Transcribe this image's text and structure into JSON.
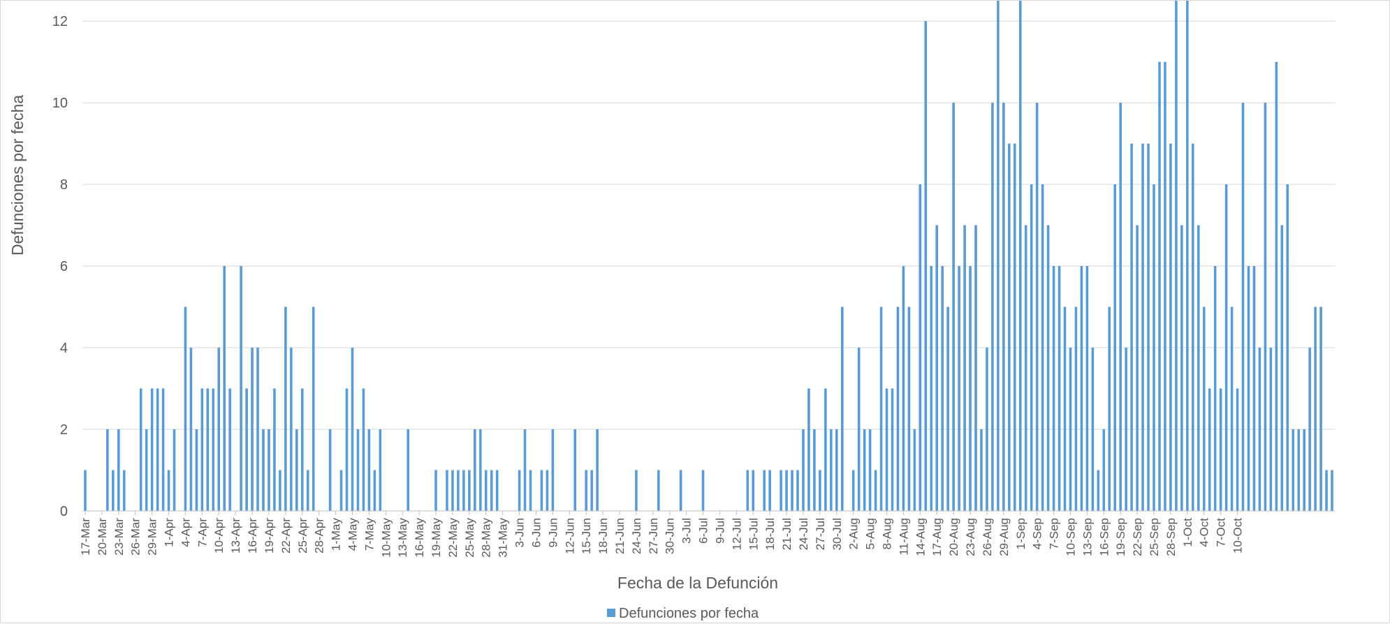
{
  "chart_data": {
    "type": "bar",
    "xlabel": "Fecha de la Defunción",
    "ylabel": "Defunciones por fecha",
    "ylim": [
      0,
      12.5
    ],
    "y_ticks": [
      0,
      2,
      4,
      6,
      8,
      10,
      12
    ],
    "grid": true,
    "legend_position": "bottom",
    "bar_color": "#5b9bd5",
    "grid_color": "#d9d9d9",
    "x_tick_labels": [
      "17-Mar",
      "20-Mar",
      "23-Mar",
      "26-Mar",
      "29-Mar",
      "1-Apr",
      "4-Apr",
      "7-Apr",
      "10-Apr",
      "13-Apr",
      "16-Apr",
      "19-Apr",
      "22-Apr",
      "25-Apr",
      "28-Apr",
      "1-May",
      "4-May",
      "7-May",
      "10-May",
      "13-May",
      "16-May",
      "19-May",
      "22-May",
      "25-May",
      "28-May",
      "31-May",
      "3-Jun",
      "6-Jun",
      "9-Jun",
      "12-Jun",
      "15-Jun",
      "18-Jun",
      "21-Jun",
      "24-Jun",
      "27-Jun",
      "30-Jun",
      "3-Jul",
      "6-Jul",
      "9-Jul",
      "12-Jul",
      "15-Jul",
      "18-Jul",
      "21-Jul",
      "24-Jul",
      "27-Jul",
      "30-Jul",
      "2-Aug",
      "5-Aug",
      "8-Aug",
      "11-Aug",
      "14-Aug",
      "17-Aug",
      "20-Aug",
      "23-Aug",
      "26-Aug",
      "29-Aug",
      "1-Sep",
      "4-Sep",
      "7-Sep",
      "10-Sep",
      "13-Sep",
      "16-Sep",
      "19-Sep",
      "22-Sep",
      "25-Sep",
      "28-Sep",
      "1-Oct",
      "4-Oct",
      "7-Oct",
      "10-Oct"
    ],
    "series": [
      {
        "name": "Defunciones por fecha",
        "values": [
          1,
          0,
          0,
          0,
          2,
          1,
          2,
          1,
          0,
          0,
          3,
          2,
          3,
          3,
          3,
          1,
          2,
          0,
          5,
          4,
          2,
          3,
          3,
          3,
          4,
          6,
          3,
          0,
          6,
          3,
          4,
          4,
          2,
          2,
          3,
          1,
          5,
          4,
          2,
          3,
          1,
          5,
          0,
          0,
          2,
          0,
          1,
          3,
          4,
          2,
          3,
          2,
          1,
          2,
          0,
          0,
          0,
          0,
          2,
          0,
          0,
          0,
          0,
          1,
          0,
          1,
          1,
          1,
          1,
          1,
          2,
          2,
          1,
          1,
          1,
          0,
          0,
          0,
          1,
          2,
          1,
          0,
          1,
          1,
          2,
          0,
          0,
          0,
          2,
          0,
          1,
          1,
          2,
          0,
          0,
          0,
          0,
          0,
          0,
          1,
          0,
          0,
          0,
          1,
          0,
          0,
          0,
          1,
          0,
          0,
          0,
          1,
          0,
          0,
          0,
          0,
          0,
          0,
          0,
          1,
          1,
          0,
          1,
          1,
          0,
          1,
          1,
          1,
          1,
          2,
          3,
          2,
          1,
          3,
          2,
          2,
          5,
          0,
          1,
          4,
          2,
          2,
          1,
          5,
          3,
          3,
          5,
          6,
          5,
          2,
          8,
          12,
          6,
          7,
          6,
          5,
          10,
          6,
          7,
          6,
          7,
          2,
          4,
          10,
          13,
          10,
          9,
          9,
          13,
          7,
          8,
          10,
          8,
          7,
          6,
          6,
          5,
          4,
          5,
          6,
          6,
          4,
          1,
          2,
          5,
          8,
          10,
          4,
          9,
          7,
          9,
          9,
          8,
          11,
          11,
          9,
          13,
          7,
          13,
          9,
          7,
          5,
          3,
          6,
          3,
          8,
          5,
          3,
          10,
          6,
          6,
          4,
          10,
          4,
          11,
          7,
          8,
          2,
          2,
          2,
          4,
          5,
          5,
          1,
          1
        ]
      }
    ]
  }
}
